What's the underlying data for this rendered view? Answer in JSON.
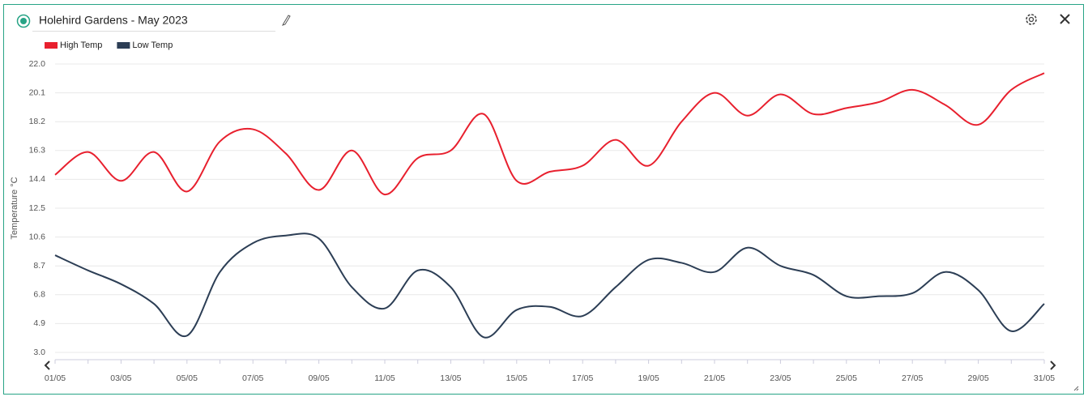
{
  "chart_data": {
    "type": "line",
    "title": "Holehird Gardens - May 2023",
    "y_label": "Temperature °C",
    "categories": [
      "01/05",
      null,
      "03/05",
      null,
      "05/05",
      null,
      "07/05",
      null,
      "09/05",
      null,
      "11/05",
      null,
      "13/05",
      null,
      "15/05",
      null,
      "17/05",
      null,
      "19/05",
      null,
      "21/05",
      null,
      "23/05",
      null,
      "25/05",
      null,
      "27/05",
      null,
      "29/05",
      null,
      "31/05"
    ],
    "series": [
      {
        "name": "High Temp",
        "color": "#e8202e",
        "values": [
          14.7,
          16.2,
          14.3,
          16.2,
          13.6,
          16.9,
          17.7,
          16.1,
          13.7,
          16.3,
          13.4,
          15.8,
          16.3,
          18.7,
          14.3,
          14.9,
          15.3,
          17.0,
          15.3,
          18.2,
          20.1,
          18.6,
          20.0,
          18.7,
          19.1,
          19.5,
          20.3,
          19.3,
          18.0,
          20.3,
          21.4
        ]
      },
      {
        "name": "Low Temp",
        "color": "#2c3e55",
        "values": [
          9.4,
          8.4,
          7.5,
          6.2,
          4.1,
          8.3,
          10.2,
          10.7,
          10.5,
          7.3,
          5.9,
          8.4,
          7.3,
          4.0,
          5.8,
          6.0,
          5.4,
          7.3,
          9.1,
          8.9,
          8.3,
          9.9,
          8.7,
          8.1,
          6.7,
          6.7,
          6.9,
          8.3,
          7.1,
          4.4,
          6.2
        ]
      }
    ],
    "ylim": [
      3,
      22
    ],
    "yticks": [
      {
        "value": 3,
        "label": "3.0"
      },
      4.9,
      6.8,
      8.7,
      10.6,
      12.5,
      14.4,
      16.3,
      18.2,
      20.1,
      {
        "value": 22,
        "label": "22.0"
      }
    ],
    "grid": true
  }
}
